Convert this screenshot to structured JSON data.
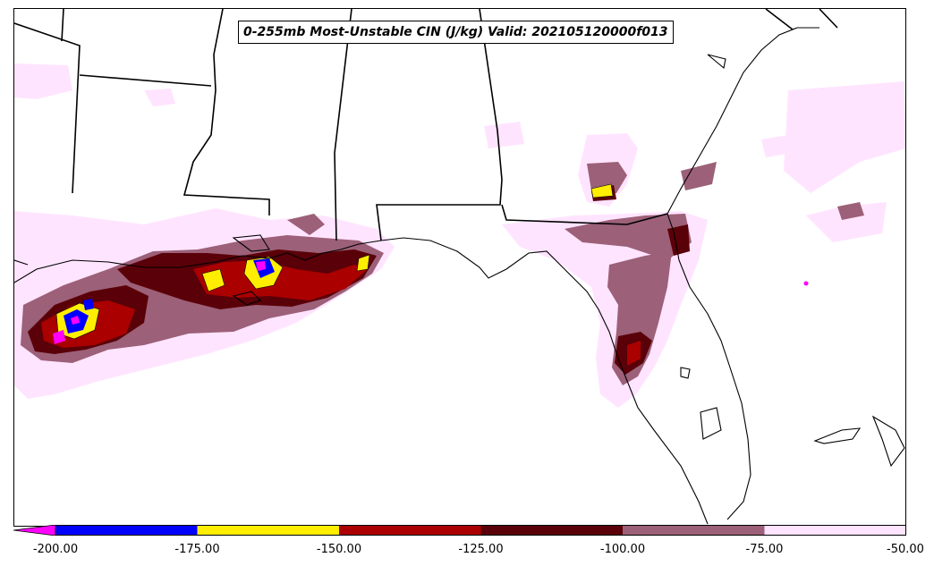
{
  "title": "0-255mb Most-Unstable CIN (J/kg) Valid: 202105120000f013",
  "colors": {
    "below_min": "#ff00ff",
    "bins": [
      "#0000ff",
      "#ffee00",
      "#aa0000",
      "#5a0008",
      "#9c6078",
      "#ffe4ff"
    ]
  },
  "colorbar": {
    "ticks": [
      "-200.00",
      "-175.00",
      "-150.00",
      "-125.00",
      "-100.00",
      "-75.00",
      "-50.00"
    ],
    "extend": "min"
  }
}
